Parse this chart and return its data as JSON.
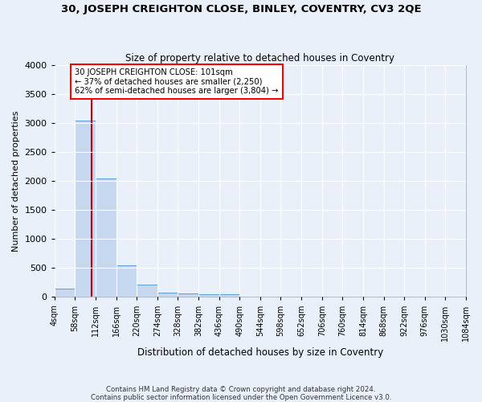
{
  "title": "30, JOSEPH CREIGHTON CLOSE, BINLEY, COVENTRY, CV3 2QE",
  "subtitle": "Size of property relative to detached houses in Coventry",
  "xlabel": "Distribution of detached houses by size in Coventry",
  "ylabel": "Number of detached properties",
  "bin_edges": [
    4,
    58,
    112,
    166,
    220,
    274,
    328,
    382,
    436,
    490,
    544,
    598,
    652,
    706,
    760,
    814,
    868,
    922,
    976,
    1030,
    1084
  ],
  "bin_heights": [
    150,
    3050,
    2050,
    550,
    210,
    75,
    55,
    45,
    45,
    0,
    0,
    0,
    0,
    0,
    0,
    0,
    0,
    0,
    0,
    0
  ],
  "bar_color": "#c5d8f0",
  "bar_edge_color": "#5b9bd5",
  "red_line_x": 101,
  "annotation_text": "30 JOSEPH CREIGHTON CLOSE: 101sqm\n← 37% of detached houses are smaller (2,250)\n62% of semi-detached houses are larger (3,804) →",
  "annotation_box_color": "white",
  "annotation_box_edge_color": "red",
  "red_line_color": "#cc0000",
  "bg_color": "#eaf0f9",
  "grid_color": "white",
  "footnote": "Contains HM Land Registry data © Crown copyright and database right 2024.\nContains public sector information licensed under the Open Government Licence v3.0.",
  "ylim": [
    0,
    4000
  ],
  "yticks": [
    0,
    500,
    1000,
    1500,
    2000,
    2500,
    3000,
    3500,
    4000
  ]
}
